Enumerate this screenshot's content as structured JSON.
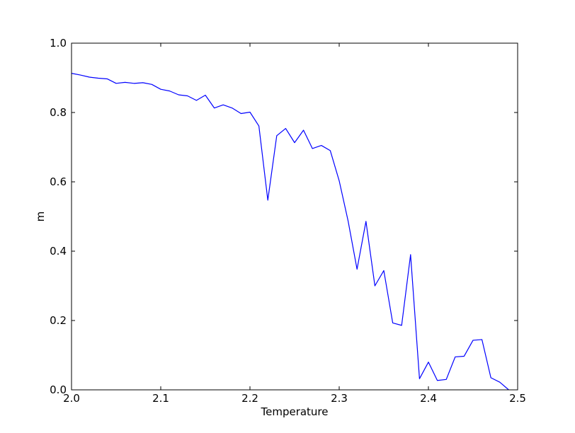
{
  "chart_data": {
    "type": "line",
    "title": "",
    "xlabel": "Temperature",
    "ylabel": "m",
    "xlim": [
      2.0,
      2.5
    ],
    "ylim": [
      0.0,
      1.0
    ],
    "xticks": [
      2.0,
      2.1,
      2.2,
      2.3,
      2.4,
      2.5
    ],
    "xtick_labels": [
      "2.0",
      "2.1",
      "2.2",
      "2.3",
      "2.4",
      "2.5"
    ],
    "yticks": [
      0.0,
      0.2,
      0.4,
      0.6,
      0.8,
      1.0
    ],
    "ytick_labels": [
      "0.0",
      "0.2",
      "0.4",
      "0.6",
      "0.8",
      "1.0"
    ],
    "grid": false,
    "legend": "none",
    "series": [
      {
        "color": "#0000ff",
        "x": [
          2.0,
          2.01,
          2.02,
          2.03,
          2.04,
          2.05,
          2.06,
          2.07,
          2.08,
          2.09,
          2.1,
          2.11,
          2.12,
          2.13,
          2.14,
          2.15,
          2.16,
          2.17,
          2.18,
          2.19,
          2.2,
          2.21,
          2.22,
          2.23,
          2.24,
          2.25,
          2.26,
          2.27,
          2.28,
          2.29,
          2.3,
          2.31,
          2.32,
          2.33,
          2.34,
          2.35,
          2.36,
          2.37,
          2.38,
          2.39,
          2.4,
          2.41,
          2.42,
          2.43,
          2.44,
          2.45,
          2.46,
          2.47,
          2.48,
          2.49
        ],
        "y": [
          0.913,
          0.908,
          0.902,
          0.899,
          0.897,
          0.884,
          0.887,
          0.884,
          0.886,
          0.881,
          0.867,
          0.862,
          0.851,
          0.848,
          0.835,
          0.85,
          0.813,
          0.822,
          0.813,
          0.797,
          0.801,
          0.761,
          0.547,
          0.733,
          0.754,
          0.713,
          0.749,
          0.696,
          0.705,
          0.69,
          0.603,
          0.487,
          0.348,
          0.486,
          0.3,
          0.344,
          0.193,
          0.186,
          0.39,
          0.032,
          0.08,
          0.027,
          0.03,
          0.095,
          0.097,
          0.143,
          0.145,
          0.035,
          0.022,
          0.0
        ]
      }
    ]
  }
}
